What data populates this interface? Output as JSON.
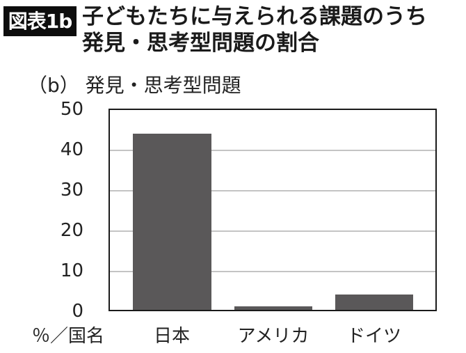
{
  "header": {
    "badge": "図表1b",
    "title_line1": "子どもたちに与えられる課題のうち",
    "title_line2": "発見・思考型問題の割合"
  },
  "chart_data": {
    "type": "bar",
    "title": "子どもたちに与えられる課題のうち発見・思考型問題の割合",
    "subtitle": "（b）発見・思考型問題",
    "categories": [
      "日本",
      "アメリカ",
      "ドイツ"
    ],
    "values": [
      44.0,
      0.9,
      3.9
    ],
    "xlabel": "％／国名",
    "ylabel": "%",
    "ylim": [
      0,
      50
    ],
    "yticks": [
      0,
      10,
      20,
      30,
      40,
      50
    ],
    "grid": true,
    "legend": null,
    "bar_color": "#5a5859"
  },
  "labels": {
    "subtitle": "（b） 発見・思考型問題",
    "xaxis_label": "％／国名",
    "yticks": [
      "50",
      "40",
      "30",
      "20",
      "10",
      "0"
    ],
    "categories": [
      "日本",
      "アメリカ",
      "ドイツ"
    ]
  }
}
